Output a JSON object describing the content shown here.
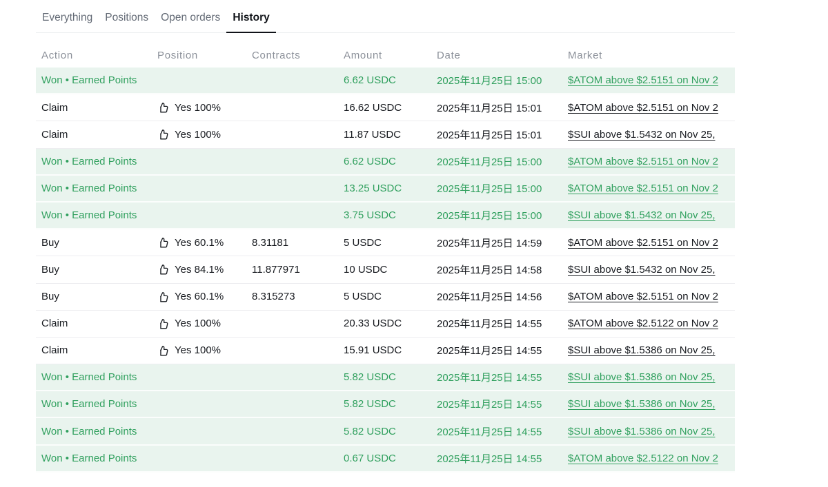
{
  "tabs": {
    "items": [
      {
        "label": "Everything",
        "active": false
      },
      {
        "label": "Positions",
        "active": false
      },
      {
        "label": "Open orders",
        "active": false
      },
      {
        "label": "History",
        "active": true
      }
    ]
  },
  "table": {
    "columns": [
      "Action",
      "Position",
      "Contracts",
      "Amount",
      "Date",
      "Market"
    ],
    "position_icon": "thumbs-up-icon",
    "rows": [
      {
        "type": "won",
        "action": "Won • Earned Points",
        "position": "",
        "contracts": "",
        "amount": "6.62 USDC",
        "date": "2025年11月25日 15:00",
        "market": "$ATOM above $2.5151 on Nov 2"
      },
      {
        "type": "claim",
        "action": "Claim",
        "position": "Yes 100%",
        "contracts": "",
        "amount": "16.62 USDC",
        "date": "2025年11月25日 15:01",
        "market": "$ATOM above $2.5151 on Nov 2"
      },
      {
        "type": "claim",
        "action": "Claim",
        "position": "Yes 100%",
        "contracts": "",
        "amount": "11.87 USDC",
        "date": "2025年11月25日 15:01",
        "market": "$SUI above $1.5432 on Nov 25,"
      },
      {
        "type": "won",
        "action": "Won • Earned Points",
        "position": "",
        "contracts": "",
        "amount": "6.62 USDC",
        "date": "2025年11月25日 15:00",
        "market": "$ATOM above $2.5151 on Nov 2"
      },
      {
        "type": "won",
        "action": "Won • Earned Points",
        "position": "",
        "contracts": "",
        "amount": "13.25 USDC",
        "date": "2025年11月25日 15:00",
        "market": "$ATOM above $2.5151 on Nov 2"
      },
      {
        "type": "won",
        "action": "Won • Earned Points",
        "position": "",
        "contracts": "",
        "amount": "3.75 USDC",
        "date": "2025年11月25日 15:00",
        "market": "$SUI above $1.5432 on Nov 25,"
      },
      {
        "type": "buy",
        "action": "Buy",
        "position": "Yes 60.1%",
        "contracts": "8.31181",
        "amount": "5 USDC",
        "date": "2025年11月25日 14:59",
        "market": "$ATOM above $2.5151 on Nov 2"
      },
      {
        "type": "buy",
        "action": "Buy",
        "position": "Yes 84.1%",
        "contracts": "11.877971",
        "amount": "10 USDC",
        "date": "2025年11月25日 14:58",
        "market": "$SUI above $1.5432 on Nov 25,"
      },
      {
        "type": "buy",
        "action": "Buy",
        "position": "Yes 60.1%",
        "contracts": "8.315273",
        "amount": "5 USDC",
        "date": "2025年11月25日 14:56",
        "market": "$ATOM above $2.5151 on Nov 2"
      },
      {
        "type": "claim",
        "action": "Claim",
        "position": "Yes 100%",
        "contracts": "",
        "amount": "20.33 USDC",
        "date": "2025年11月25日 14:55",
        "market": "$ATOM above $2.5122 on Nov 2"
      },
      {
        "type": "claim",
        "action": "Claim",
        "position": "Yes 100%",
        "contracts": "",
        "amount": "15.91 USDC",
        "date": "2025年11月25日 14:55",
        "market": "$SUI above $1.5386 on Nov 25,"
      },
      {
        "type": "won",
        "action": "Won • Earned Points",
        "position": "",
        "contracts": "",
        "amount": "5.82 USDC",
        "date": "2025年11月25日 14:55",
        "market": "$SUI above $1.5386 on Nov 25,"
      },
      {
        "type": "won",
        "action": "Won • Earned Points",
        "position": "",
        "contracts": "",
        "amount": "5.82 USDC",
        "date": "2025年11月25日 14:55",
        "market": "$SUI above $1.5386 on Nov 25,"
      },
      {
        "type": "won",
        "action": "Won • Earned Points",
        "position": "",
        "contracts": "",
        "amount": "5.82 USDC",
        "date": "2025年11月25日 14:55",
        "market": "$SUI above $1.5386 on Nov 25,"
      },
      {
        "type": "won",
        "action": "Won • Earned Points",
        "position": "",
        "contracts": "",
        "amount": "0.67 USDC",
        "date": "2025年11月25日 14:55",
        "market": "$ATOM above $2.5122 on Nov 2"
      }
    ]
  },
  "colors": {
    "accent_green": "#30a05e",
    "won_row_background": "#e9f4ee",
    "text_dark": "#16191e",
    "tab_inactive": "#646b76",
    "column_header": "#8b9099",
    "active_tab_underline": "#101318"
  }
}
